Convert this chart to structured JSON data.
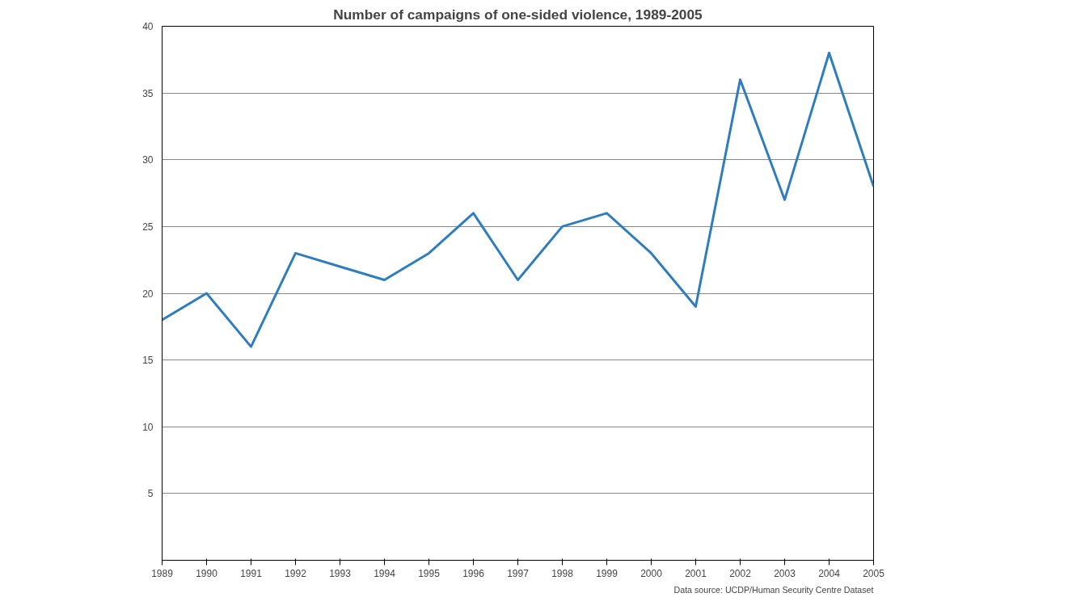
{
  "chart_data": {
    "type": "line",
    "title": "Number of campaigns of one-sided violence, 1989-2005",
    "x": [
      1989,
      1990,
      1991,
      1992,
      1993,
      1994,
      1995,
      1996,
      1997,
      1998,
      1999,
      2000,
      2001,
      2002,
      2003,
      2004,
      2005
    ],
    "series": [
      {
        "color": "#2e7dbf",
        "values": [
          18,
          20,
          16,
          23,
          22,
          21,
          23,
          26,
          21,
          25,
          26,
          23,
          19,
          36,
          27,
          38,
          28
        ]
      }
    ],
    "xlim": [
      1989,
      2005
    ],
    "xticks": [
      1989,
      1990,
      1991,
      1992,
      1993,
      1994,
      1995,
      1996,
      1997,
      1998,
      1999,
      2000,
      2001,
      2002,
      2003,
      2004,
      2005
    ],
    "ylim": [
      0,
      40
    ],
    "yticks": [
      5,
      10,
      15,
      20,
      25,
      30,
      35,
      40
    ],
    "grid": "y",
    "marker": "none",
    "line_style": "solid",
    "annotations": [
      "Data source: UCDP/Human Security Centre Dataset"
    ]
  }
}
